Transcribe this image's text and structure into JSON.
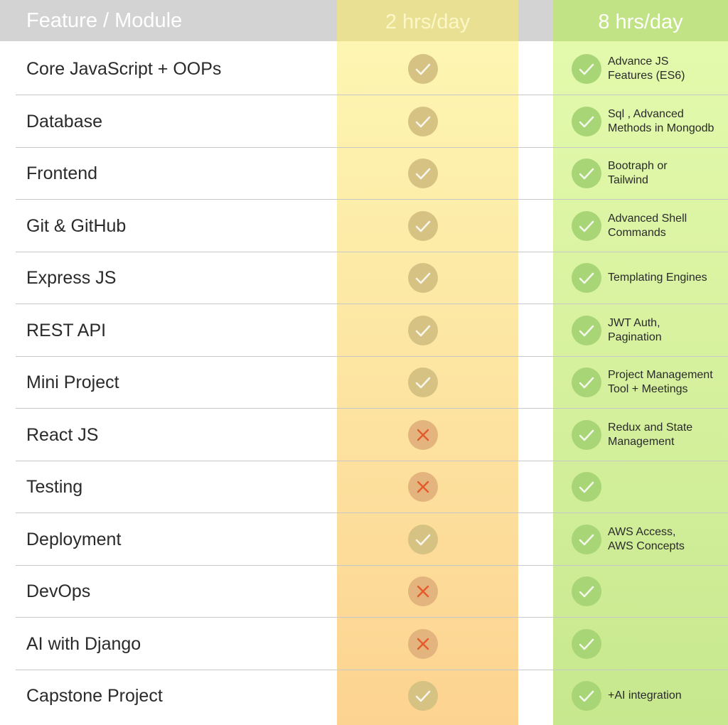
{
  "header": {
    "feature_label": "Feature / Module",
    "plan_2h": "2 hrs/day",
    "plan_8h": "8 hrs/day"
  },
  "colors": {
    "header_bg": "#d3d3d3",
    "col_2h": "#fde7a4",
    "col_8h": "#d8f2a0",
    "check_2h": "#d6c283",
    "cross": "#e55b2b",
    "check_8h": "#a8d575"
  },
  "rows": [
    {
      "feature": "Core JavaScript + OOPs",
      "included_2h": true,
      "included_8h": true,
      "note_8h": "Advance JS\nFeatures (ES6)"
    },
    {
      "feature": "Database",
      "included_2h": true,
      "included_8h": true,
      "note_8h": "Sql , Advanced\nMethods in Mongodb"
    },
    {
      "feature": "Frontend",
      "included_2h": true,
      "included_8h": true,
      "note_8h": "Bootraph or\nTailwind"
    },
    {
      "feature": "Git & GitHub",
      "included_2h": true,
      "included_8h": true,
      "note_8h": "Advanced Shell\nCommands"
    },
    {
      "feature": "Express JS",
      "included_2h": true,
      "included_8h": true,
      "note_8h": "Templating Engines"
    },
    {
      "feature": "REST API",
      "included_2h": true,
      "included_8h": true,
      "note_8h": "JWT Auth,\nPagination"
    },
    {
      "feature": "Mini Project",
      "included_2h": true,
      "included_8h": true,
      "note_8h": "Project Management\nTool + Meetings"
    },
    {
      "feature": "React JS",
      "included_2h": false,
      "included_8h": true,
      "note_8h": "Redux and State\nManagement"
    },
    {
      "feature": "Testing",
      "included_2h": false,
      "included_8h": true,
      "note_8h": ""
    },
    {
      "feature": "Deployment",
      "included_2h": true,
      "included_8h": true,
      "note_8h": "AWS Access,\nAWS Concepts"
    },
    {
      "feature": "DevOps",
      "included_2h": false,
      "included_8h": true,
      "note_8h": ""
    },
    {
      "feature": "AI with Django",
      "included_2h": false,
      "included_8h": true,
      "note_8h": ""
    },
    {
      "feature": "Capstone Project",
      "included_2h": true,
      "included_8h": true,
      "note_8h": "+AI integration"
    }
  ]
}
